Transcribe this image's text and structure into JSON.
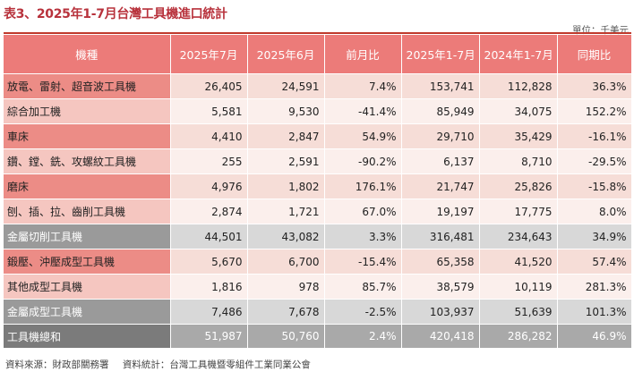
{
  "title": "表3、2025年1-7月台灣工具機進口統計",
  "unit": "單位：千美元",
  "headers": [
    "機種",
    "2025年7月",
    "2025年6月",
    "前月比",
    "2025年1-7月",
    "2024年1-7月",
    "同期比"
  ],
  "rows": [
    {
      "name": "放電、雷射、超音波工具機",
      "v1": "26,405",
      "v2": "24,591",
      "mom": "7.4%",
      "ytd25": "153,741",
      "ytd24": "112,828",
      "yoy": "36.3%"
    },
    {
      "name": "綜合加工機",
      "v1": "5,581",
      "v2": "9,530",
      "mom": "-41.4%",
      "ytd25": "85,949",
      "ytd24": "34,075",
      "yoy": "152.2%"
    },
    {
      "name": "車床",
      "v1": "4,410",
      "v2": "2,847",
      "mom": "54.9%",
      "ytd25": "29,710",
      "ytd24": "35,429",
      "yoy": "-16.1%"
    },
    {
      "name": "鑽、鏜、銑、攻螺紋工具機",
      "v1": "255",
      "v2": "2,591",
      "mom": "-90.2%",
      "ytd25": "6,137",
      "ytd24": "8,710",
      "yoy": "-29.5%"
    },
    {
      "name": "磨床",
      "v1": "4,976",
      "v2": "1,802",
      "mom": "176.1%",
      "ytd25": "21,747",
      "ytd24": "25,826",
      "yoy": "-15.8%"
    },
    {
      "name": "刨、插、拉、齒削工具機",
      "v1": "2,874",
      "v2": "1,721",
      "mom": "67.0%",
      "ytd25": "19,197",
      "ytd24": "17,775",
      "yoy": "8.0%"
    },
    {
      "name": "金屬切削工具機",
      "v1": "44,501",
      "v2": "43,082",
      "mom": "3.3%",
      "ytd25": "316,481",
      "ytd24": "234,643",
      "yoy": "34.9%"
    },
    {
      "name": "鍛壓、沖壓成型工具機",
      "v1": "5,670",
      "v2": "6,700",
      "mom": "-15.4%",
      "ytd25": "65,358",
      "ytd24": "41,520",
      "yoy": "57.4%"
    },
    {
      "name": "其他成型工具機",
      "v1": "1,816",
      "v2": "978",
      "mom": "85.7%",
      "ytd25": "38,579",
      "ytd24": "10,119",
      "yoy": "281.3%"
    },
    {
      "name": "金屬成型工具機",
      "v1": "7,486",
      "v2": "7,678",
      "mom": "-2.5%",
      "ytd25": "103,937",
      "ytd24": "51,639",
      "yoy": "101.3%"
    },
    {
      "name": "工具機總和",
      "v1": "51,987",
      "v2": "50,760",
      "mom": "2.4%",
      "ytd25": "420,418",
      "ytd24": "286,282",
      "yoy": "46.9%"
    }
  ],
  "source": {
    "data_source": "資料來源：財政部關務署",
    "compiled_by": "資料統計：台灣工具機暨零組件工業同業公會"
  }
}
